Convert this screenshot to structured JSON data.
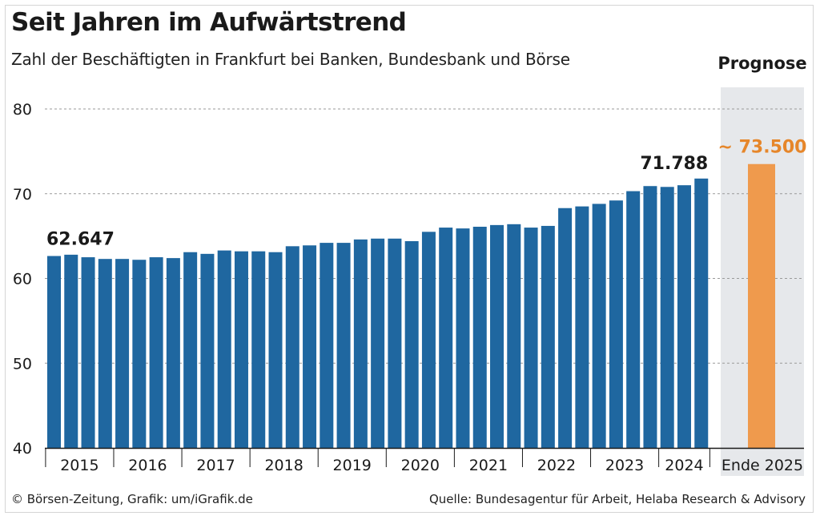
{
  "title": "Seit Jahren im Aufwärtstrend",
  "subtitle": "Zahl der Beschäftigten in Frankfurt bei Banken, Bundesbank und Börse",
  "footer": {
    "credit": "© Börsen-Zeitung, Grafik: um/iGrafik.de",
    "source": "Quelle: Bundesagentur für Arbeit, Helaba Research & Advisory"
  },
  "chart_data": {
    "type": "bar",
    "unit": "thousands",
    "ylim": [
      40,
      80
    ],
    "yticks": [
      40,
      50,
      60,
      70,
      80
    ],
    "grid": true,
    "year_labels": [
      "2015",
      "2016",
      "2017",
      "2018",
      "2019",
      "2020",
      "2021",
      "2022",
      "2023",
      "2024"
    ],
    "values": [
      62.647,
      62.8,
      62.5,
      62.3,
      62.3,
      62.2,
      62.5,
      62.4,
      63.1,
      62.9,
      63.3,
      63.2,
      63.2,
      63.1,
      63.8,
      63.9,
      64.2,
      64.2,
      64.6,
      64.7,
      64.7,
      64.4,
      65.5,
      66.0,
      65.9,
      66.1,
      66.3,
      66.4,
      66.0,
      66.2,
      68.3,
      68.5,
      68.8,
      69.2,
      70.3,
      70.9,
      70.8,
      71.0,
      71.788
    ],
    "bar_color": "#1f67a0",
    "labels": {
      "first": "62.647",
      "last": "71.788"
    },
    "forecast": {
      "header": "Prognose",
      "category": "Ende 2025",
      "value": 73.5,
      "label": "~ 73.500",
      "color": "#ef9a4d",
      "label_color": "#e6862a",
      "panel_color": "#e6e8eb"
    }
  }
}
